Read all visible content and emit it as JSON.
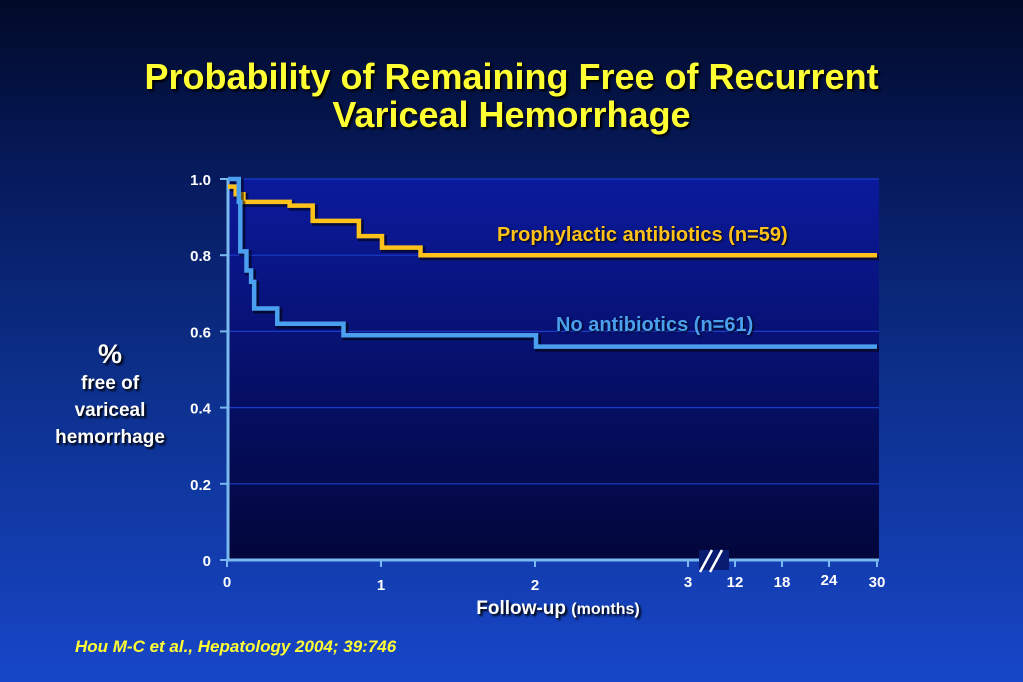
{
  "title": {
    "line1": "Probability of Remaining Free of Recurrent",
    "line2": "Variceal Hemorrhage"
  },
  "y_axis_label": {
    "symbol": "%",
    "line1": "free of",
    "line2": "variceal",
    "line3": "hemorrhage"
  },
  "x_axis_label": {
    "main": "Follow-up",
    "unit": "(months)"
  },
  "citation": "Hou M-C et al., Hepatology 2004; 39:746",
  "colors": {
    "title": "#ffff33",
    "series_antibiotics": "#ffc21a",
    "series_no_antibiotics": "#4aa0ee",
    "axis": "#7ab8f0",
    "gridline": "#1a3cc8"
  },
  "chart_data": {
    "type": "line",
    "step": true,
    "title": "Probability of Remaining Free of Recurrent Variceal Hemorrhage",
    "xlabel": "Follow-up (months)",
    "ylabel": "% free of variceal hemorrhage",
    "ylim": [
      0,
      1.0
    ],
    "y_ticks": [
      "0",
      "0.2",
      "0.4",
      "0.6",
      "0.8",
      "1.0"
    ],
    "x_ticks": [
      "0",
      "1",
      "2",
      "3",
      "12",
      "18",
      "24",
      "30"
    ],
    "axis_break": "between 3 and 12",
    "grid": true,
    "series": [
      {
        "name": "Prophylactic antibiotics (n=59)",
        "color": "#ffc21a",
        "points": [
          [
            0,
            0.98
          ],
          [
            0.05,
            0.96
          ],
          [
            0.1,
            0.94
          ],
          [
            0.4,
            0.93
          ],
          [
            0.55,
            0.89
          ],
          [
            0.85,
            0.85
          ],
          [
            1.0,
            0.82
          ],
          [
            1.25,
            0.8
          ],
          [
            30,
            0.8
          ]
        ]
      },
      {
        "name": "No antibiotics (n=61)",
        "color": "#4aa0ee",
        "points": [
          [
            0,
            1.0
          ],
          [
            0.07,
            0.94
          ],
          [
            0.08,
            0.81
          ],
          [
            0.12,
            0.76
          ],
          [
            0.15,
            0.73
          ],
          [
            0.17,
            0.66
          ],
          [
            0.32,
            0.62
          ],
          [
            0.75,
            0.59
          ],
          [
            2.0,
            0.56
          ],
          [
            30,
            0.56
          ]
        ]
      }
    ]
  }
}
